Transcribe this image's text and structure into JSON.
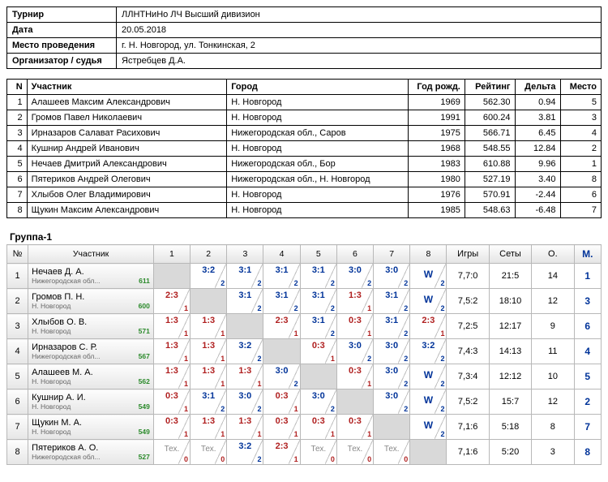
{
  "info": {
    "labels": {
      "tournament": "Турнир",
      "date": "Дата",
      "venue": "Место проведения",
      "org": "Организатор / судья"
    },
    "tournament": "ЛЛНТНиНо ЛЧ Высший дивизион",
    "date": "20.05.2018",
    "venue": "г. Н. Новгород, ул. Тонкинская, 2",
    "org": "Ястребцев Д.А."
  },
  "main": {
    "headers": {
      "n": "N",
      "name": "Участник",
      "city": "Город",
      "year": "Год рожд.",
      "rating": "Рейтинг",
      "delta": "Дельта",
      "place": "Место"
    },
    "rows": [
      {
        "n": "1",
        "name": "Алашеев Максим Александрович",
        "city": "Н. Новгород",
        "year": "1969",
        "rating": "562.30",
        "delta": "0.94",
        "place": "5"
      },
      {
        "n": "2",
        "name": "Громов Павел Николаевич",
        "city": "Н. Новгород",
        "year": "1991",
        "rating": "600.24",
        "delta": "3.81",
        "place": "3"
      },
      {
        "n": "3",
        "name": "Ирназаров Салават Расихович",
        "city": "Нижегородская обл., Саров",
        "year": "1975",
        "rating": "566.71",
        "delta": "6.45",
        "place": "4"
      },
      {
        "n": "4",
        "name": "Кушнир Андрей Иванович",
        "city": "Н. Новгород",
        "year": "1968",
        "rating": "548.55",
        "delta": "12.84",
        "place": "2"
      },
      {
        "n": "5",
        "name": "Нечаев Дмитрий Александрович",
        "city": "Нижегородская обл., Бор",
        "year": "1983",
        "rating": "610.88",
        "delta": "9.96",
        "place": "1"
      },
      {
        "n": "6",
        "name": "Пятериков Андрей Олегович",
        "city": "Нижегородская обл., Н. Новгород",
        "year": "1980",
        "rating": "527.19",
        "delta": "3.40",
        "place": "8"
      },
      {
        "n": "7",
        "name": "Хлыбов Олег Владимирович",
        "city": "Н. Новгород",
        "year": "1976",
        "rating": "570.91",
        "delta": "-2.44",
        "place": "6"
      },
      {
        "n": "8",
        "name": "Щукин Максим Александрович",
        "city": "Н. Новгород",
        "year": "1985",
        "rating": "548.63",
        "delta": "-6.48",
        "place": "7"
      }
    ]
  },
  "group": {
    "title": "Группа-1",
    "headers": {
      "n": "№",
      "name": "Участник",
      "games": "Игры",
      "sets": "Сеты",
      "pts": "О.",
      "place": "М."
    },
    "match_cols": [
      "1",
      "2",
      "3",
      "4",
      "5",
      "6",
      "7",
      "8"
    ],
    "players": [
      {
        "n": "1",
        "name": "Нечаев Д. А.",
        "sub": "Нижегородская обл...",
        "rat": "611",
        "games": "7,7:0",
        "sets": "21:5",
        "pts": "14",
        "place": "1"
      },
      {
        "n": "2",
        "name": "Громов П. Н.",
        "sub": "Н. Новгород",
        "rat": "600",
        "games": "7,5:2",
        "sets": "18:10",
        "pts": "12",
        "place": "3"
      },
      {
        "n": "3",
        "name": "Хлыбов О. В.",
        "sub": "Н. Новгород",
        "rat": "571",
        "games": "7,2:5",
        "sets": "12:17",
        "pts": "9",
        "place": "6"
      },
      {
        "n": "4",
        "name": "Ирназаров С. Р.",
        "sub": "Нижегородская обл...",
        "rat": "567",
        "games": "7,4:3",
        "sets": "14:13",
        "pts": "11",
        "place": "4"
      },
      {
        "n": "5",
        "name": "Алашеев М. А.",
        "sub": "Н. Новгород",
        "rat": "562",
        "games": "7,3:4",
        "sets": "12:12",
        "pts": "10",
        "place": "5"
      },
      {
        "n": "6",
        "name": "Кушнир А. И.",
        "sub": "Н. Новгород",
        "rat": "549",
        "games": "7,5:2",
        "sets": "15:7",
        "pts": "12",
        "place": "2"
      },
      {
        "n": "7",
        "name": "Щукин М. А.",
        "sub": "Н. Новгород",
        "rat": "549",
        "games": "7,1:6",
        "sets": "5:18",
        "pts": "8",
        "place": "7"
      },
      {
        "n": "8",
        "name": "Пятериков А. О.",
        "sub": "Нижегородская обл...",
        "rat": "527",
        "games": "7,1:6",
        "sets": "5:20",
        "pts": "3",
        "place": "8"
      }
    ],
    "matches": [
      [
        null,
        {
          "s": "3:2",
          "p": "2",
          "w": 1
        },
        {
          "s": "3:1",
          "p": "2",
          "w": 1
        },
        {
          "s": "3:1",
          "p": "2",
          "w": 1
        },
        {
          "s": "3:1",
          "p": "2",
          "w": 1
        },
        {
          "s": "3:0",
          "p": "2",
          "w": 1
        },
        {
          "s": "3:0",
          "p": "2",
          "w": 1
        },
        {
          "t": "W",
          "p": "2",
          "w": 1
        }
      ],
      [
        {
          "s": "2:3",
          "p": "1",
          "w": 0
        },
        null,
        {
          "s": "3:1",
          "p": "2",
          "w": 1
        },
        {
          "s": "3:1",
          "p": "2",
          "w": 1
        },
        {
          "s": "3:1",
          "p": "2",
          "w": 1
        },
        {
          "s": "1:3",
          "p": "1",
          "w": 0
        },
        {
          "s": "3:1",
          "p": "2",
          "w": 1
        },
        {
          "t": "W",
          "p": "2",
          "w": 1
        }
      ],
      [
        {
          "s": "1:3",
          "p": "1",
          "w": 0
        },
        {
          "s": "1:3",
          "p": "1",
          "w": 0
        },
        null,
        {
          "s": "2:3",
          "p": "1",
          "w": 0
        },
        {
          "s": "3:1",
          "p": "2",
          "w": 1
        },
        {
          "s": "0:3",
          "p": "1",
          "w": 0
        },
        {
          "s": "3:1",
          "p": "2",
          "w": 1
        },
        {
          "s": "2:3",
          "p": "1",
          "w": 0
        }
      ],
      [
        {
          "s": "1:3",
          "p": "1",
          "w": 0
        },
        {
          "s": "1:3",
          "p": "1",
          "w": 0
        },
        {
          "s": "3:2",
          "p": "2",
          "w": 1
        },
        null,
        {
          "s": "0:3",
          "p": "1",
          "w": 0
        },
        {
          "s": "3:0",
          "p": "2",
          "w": 1
        },
        {
          "s": "3:0",
          "p": "2",
          "w": 1
        },
        {
          "s": "3:2",
          "p": "2",
          "w": 1
        }
      ],
      [
        {
          "s": "1:3",
          "p": "1",
          "w": 0
        },
        {
          "s": "1:3",
          "p": "1",
          "w": 0
        },
        {
          "s": "1:3",
          "p": "1",
          "w": 0
        },
        {
          "s": "3:0",
          "p": "2",
          "w": 1
        },
        null,
        {
          "s": "0:3",
          "p": "1",
          "w": 0
        },
        {
          "s": "3:0",
          "p": "2",
          "w": 1
        },
        {
          "t": "W",
          "p": "2",
          "w": 1
        }
      ],
      [
        {
          "s": "0:3",
          "p": "1",
          "w": 0
        },
        {
          "s": "3:1",
          "p": "2",
          "w": 1
        },
        {
          "s": "3:0",
          "p": "2",
          "w": 1
        },
        {
          "s": "0:3",
          "p": "1",
          "w": 0
        },
        {
          "s": "3:0",
          "p": "2",
          "w": 1
        },
        null,
        {
          "s": "3:0",
          "p": "2",
          "w": 1
        },
        {
          "t": "W",
          "p": "2",
          "w": 1
        }
      ],
      [
        {
          "s": "0:3",
          "p": "1",
          "w": 0
        },
        {
          "s": "1:3",
          "p": "1",
          "w": 0
        },
        {
          "s": "1:3",
          "p": "1",
          "w": 0
        },
        {
          "s": "0:3",
          "p": "1",
          "w": 0
        },
        {
          "s": "0:3",
          "p": "1",
          "w": 0
        },
        {
          "s": "0:3",
          "p": "1",
          "w": 0
        },
        null,
        {
          "t": "W",
          "p": "2",
          "w": 1
        }
      ],
      [
        {
          "t": "Тех.",
          "p": "0",
          "w": 0
        },
        {
          "t": "Тех.",
          "p": "0",
          "w": 0
        },
        {
          "s": "3:2",
          "p": "2",
          "w": 1
        },
        {
          "s": "2:3",
          "p": "1",
          "w": 0
        },
        {
          "t": "Тех.",
          "p": "0",
          "w": 0
        },
        {
          "t": "Тех.",
          "p": "0",
          "w": 0
        },
        {
          "t": "Тех.",
          "p": "0",
          "w": 0
        },
        null
      ]
    ]
  }
}
